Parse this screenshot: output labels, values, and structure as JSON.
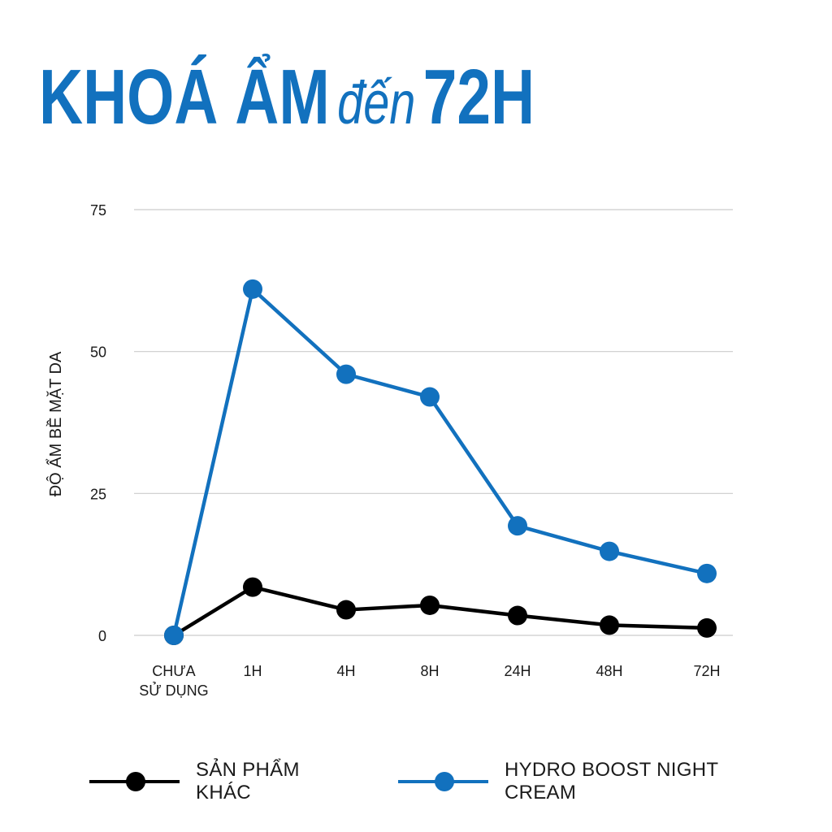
{
  "header": {
    "title_part1": "KHOÁ ẨM",
    "title_part2": "đến",
    "title_part3": "72H"
  },
  "colors": {
    "accent": "#1271be",
    "other": "#000000",
    "grid": "#cccccc"
  },
  "chart_data": {
    "type": "line",
    "title": "KHOÁ ẨM đến 72H",
    "ylabel": "ĐỘ ẨM BỀ MẶT DA",
    "xlabel": "",
    "categories": [
      [
        "CHƯA",
        "SỬ DỤNG"
      ],
      [
        "1H"
      ],
      [
        "4H"
      ],
      [
        "8H"
      ],
      [
        "24H"
      ],
      [
        "48H"
      ],
      [
        "72H"
      ]
    ],
    "yticks": [
      0,
      25,
      50,
      75
    ],
    "ylim": [
      0,
      75
    ],
    "grid": true,
    "legend_position": "bottom",
    "series": [
      {
        "name": "SẢN PHẨM KHÁC",
        "color": "#000000",
        "values": [
          0,
          8.5,
          4.5,
          5.3,
          3.5,
          1.8,
          1.3
        ]
      },
      {
        "name": "HYDRO BOOST NIGHT CREAM",
        "color": "#1271be",
        "values": [
          0,
          61,
          46,
          42,
          19.3,
          14.8,
          10.9
        ]
      }
    ]
  }
}
